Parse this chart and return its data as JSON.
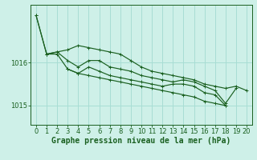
{
  "background_color": "#cef0e8",
  "grid_color": "#a8ddd4",
  "line_color": "#1a6020",
  "xlabel": "Graphe pression niveau de la mer (hPa)",
  "xlabel_fontsize": 7,
  "tick_fontsize": 6,
  "ytick_labels": [
    1015,
    1016
  ],
  "ylim": [
    1014.55,
    1017.35
  ],
  "xlim": [
    -0.5,
    20.5
  ],
  "xticks": [
    0,
    1,
    2,
    3,
    4,
    5,
    6,
    7,
    8,
    9,
    10,
    11,
    12,
    13,
    14,
    15,
    16,
    17,
    18,
    19,
    20
  ],
  "series": [
    {
      "x": [
        0,
        1,
        2,
        3,
        4,
        5,
        6,
        7,
        8,
        9,
        10,
        11,
        12,
        13,
        14,
        15,
        16,
        17,
        18,
        19
      ],
      "y": [
        1017.1,
        1016.2,
        1016.25,
        1016.05,
        1015.9,
        1016.05,
        1016.05,
        1015.9,
        1015.85,
        1015.8,
        1015.7,
        1015.65,
        1015.6,
        1015.55,
        1015.6,
        1015.55,
        1015.45,
        1015.35,
        1015.05,
        1015.4
      ]
    },
    {
      "x": [
        0,
        1,
        2,
        3,
        4,
        5,
        6,
        7,
        8,
        9,
        10,
        11,
        12,
        13,
        14,
        15,
        16,
        17,
        18
      ],
      "y": [
        1017.1,
        1016.2,
        1016.2,
        1015.85,
        1015.75,
        1015.9,
        1015.8,
        1015.7,
        1015.65,
        1015.6,
        1015.55,
        1015.5,
        1015.45,
        1015.5,
        1015.5,
        1015.45,
        1015.3,
        1015.25,
        1015.0
      ]
    },
    {
      "x": [
        1,
        2,
        3,
        4,
        5,
        6,
        7,
        8,
        9,
        10,
        11,
        12,
        13,
        14,
        15,
        16,
        17,
        18,
        19,
        20
      ],
      "y": [
        1016.2,
        1016.25,
        1016.3,
        1016.4,
        1016.35,
        1016.3,
        1016.25,
        1016.2,
        1016.05,
        1015.9,
        1015.8,
        1015.75,
        1015.7,
        1015.65,
        1015.6,
        1015.5,
        1015.45,
        1015.4,
        1015.45,
        1015.35
      ]
    },
    {
      "x": [
        3,
        4,
        5,
        6,
        7,
        8,
        9,
        10,
        11,
        12,
        13,
        14,
        15,
        16,
        17,
        18
      ],
      "y": [
        1015.85,
        1015.75,
        1015.7,
        1015.65,
        1015.6,
        1015.55,
        1015.5,
        1015.45,
        1015.4,
        1015.35,
        1015.3,
        1015.25,
        1015.2,
        1015.1,
        1015.05,
        1015.0
      ]
    }
  ]
}
